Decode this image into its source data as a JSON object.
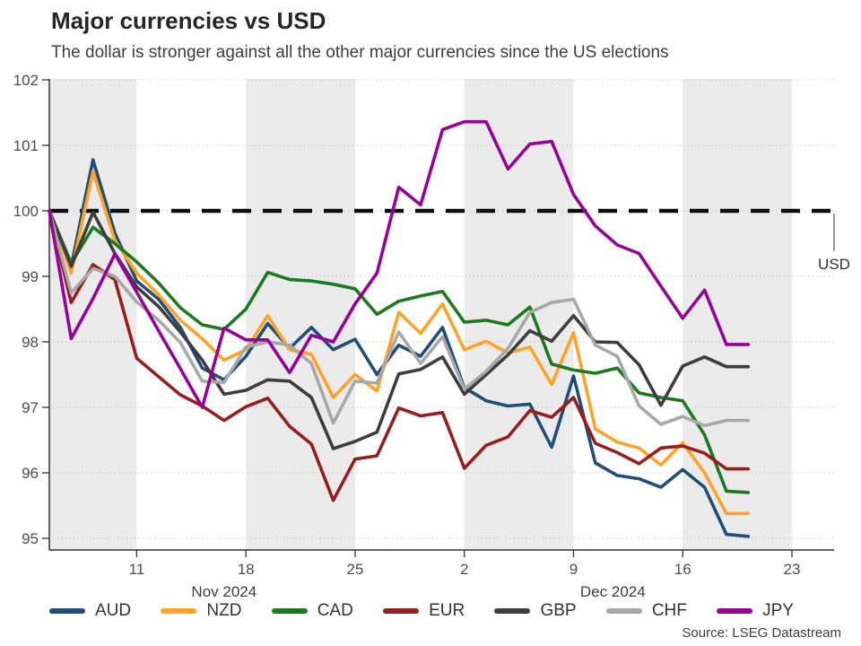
{
  "header": {
    "title": "Major currencies vs USD",
    "subtitle": "The dollar is stronger against all the other major currencies since the US elections"
  },
  "source": "Source: LSEG Datastream",
  "chart_data": {
    "type": "line",
    "title": "Major currencies vs USD",
    "xlabel": "",
    "ylabel": "",
    "ylim": [
      94.8,
      102
    ],
    "y_ticks": [
      95,
      96,
      97,
      98,
      99,
      100,
      101,
      102
    ],
    "grid": "dotted horizontal",
    "baseline": {
      "value": 100,
      "label": "USD"
    },
    "dates": [
      "Nov 5",
      "Nov 6",
      "Nov 7",
      "Nov 8",
      "Nov 11",
      "Nov 12",
      "Nov 13",
      "Nov 14",
      "Nov 15",
      "Nov 18",
      "Nov 19",
      "Nov 20",
      "Nov 21",
      "Nov 22",
      "Nov 25",
      "Nov 26",
      "Nov 27",
      "Nov 28",
      "Nov 29",
      "Dec 2",
      "Dec 3",
      "Dec 4",
      "Dec 5",
      "Dec 6",
      "Dec 9",
      "Dec 10",
      "Dec 11",
      "Dec 12",
      "Dec 13",
      "Dec 16",
      "Dec 17",
      "Dec 18",
      "Dec 19"
    ],
    "x_ticks": [
      {
        "label": "11",
        "day_index": 4
      },
      {
        "label": "18",
        "day_index": 9
      },
      {
        "label": "25",
        "day_index": 14
      },
      {
        "label": "2",
        "day_index": 19
      },
      {
        "label": "9",
        "day_index": 24
      },
      {
        "label": "16",
        "day_index": 29
      },
      {
        "label": "23",
        "day_index": 34
      }
    ],
    "month_labels": [
      {
        "label": "Nov 2024",
        "day_index": 8
      },
      {
        "label": "Dec 2024",
        "day_index": 25.8
      }
    ],
    "week_bands_day_index": [
      [
        0,
        4
      ],
      [
        9,
        14
      ],
      [
        19,
        24
      ],
      [
        29,
        34
      ]
    ],
    "band_color": "#ebebeb",
    "series": [
      {
        "name": "AUD",
        "color": "#1F4E79",
        "values": [
          100,
          99.15,
          100.78,
          99.66,
          98.93,
          98.65,
          98.22,
          97.6,
          97.42,
          97.78,
          98.28,
          97.9,
          98.22,
          97.88,
          98.04,
          97.5,
          97.95,
          97.78,
          98.22,
          97.3,
          97.1,
          97.02,
          97.05,
          96.39,
          97.48,
          96.15,
          95.96,
          95.91,
          95.78,
          96.05,
          95.78,
          95.06,
          95.03
        ]
      },
      {
        "name": "NZD",
        "color": "#FFA226",
        "values": [
          100,
          99.05,
          100.6,
          99.55,
          99.05,
          98.72,
          98.33,
          98.05,
          97.72,
          97.88,
          98.4,
          97.88,
          97.81,
          97.15,
          97.5,
          97.25,
          98.45,
          98.13,
          98.58,
          97.88,
          98.01,
          97.83,
          97.92,
          97.35,
          98.14,
          96.67,
          96.47,
          96.38,
          96.12,
          96.46,
          96.0,
          95.38,
          95.38
        ]
      },
      {
        "name": "CAD",
        "color": "#1B7A1B",
        "values": [
          100,
          99.2,
          99.75,
          99.5,
          99.22,
          98.9,
          98.52,
          98.26,
          98.19,
          98.5,
          99.06,
          98.95,
          98.93,
          98.88,
          98.81,
          98.42,
          98.62,
          98.7,
          98.77,
          98.3,
          98.33,
          98.26,
          98.53,
          97.66,
          97.57,
          97.52,
          97.6,
          97.22,
          97.15,
          97.1,
          96.58,
          95.72,
          95.7
        ]
      },
      {
        "name": "EUR",
        "color": "#9B1C1C",
        "values": [
          100,
          98.6,
          99.18,
          98.95,
          97.75,
          97.47,
          97.19,
          97.02,
          96.8,
          97.01,
          97.14,
          96.71,
          96.44,
          95.58,
          96.21,
          96.26,
          96.99,
          96.87,
          96.92,
          96.07,
          96.42,
          96.55,
          96.95,
          96.85,
          97.15,
          96.45,
          96.31,
          96.14,
          96.38,
          96.41,
          96.3,
          96.06,
          96.06
        ]
      },
      {
        "name": "GBP",
        "color": "#3D3D3D",
        "values": [
          100,
          99.15,
          99.98,
          99.35,
          98.84,
          98.54,
          98.15,
          97.72,
          97.2,
          97.26,
          97.42,
          97.4,
          97.15,
          96.37,
          96.48,
          96.62,
          97.51,
          97.58,
          97.77,
          97.2,
          97.5,
          97.8,
          98.17,
          98.01,
          98.4,
          98.0,
          97.99,
          97.65,
          97.03,
          97.63,
          97.77,
          97.62,
          97.62
        ]
      },
      {
        "name": "CHF",
        "color": "#A8A8A8",
        "values": [
          100,
          98.75,
          99.12,
          99.0,
          98.61,
          98.33,
          97.99,
          97.4,
          97.38,
          97.92,
          98.0,
          97.95,
          97.67,
          96.76,
          97.4,
          97.37,
          98.15,
          97.67,
          98.08,
          97.28,
          97.55,
          97.9,
          98.45,
          98.6,
          98.65,
          97.95,
          97.78,
          97.02,
          96.74,
          96.86,
          96.72,
          96.8,
          96.8
        ]
      },
      {
        "name": "JPY",
        "color": "#990099",
        "values": [
          100,
          98.05,
          98.66,
          99.34,
          98.76,
          98.17,
          97.59,
          97.0,
          98.21,
          98.03,
          98.03,
          97.53,
          98.1,
          98.0,
          98.58,
          99.05,
          100.36,
          100.09,
          101.24,
          101.36,
          101.36,
          100.64,
          101.02,
          101.06,
          100.25,
          99.77,
          99.48,
          99.35,
          98.85,
          98.36,
          98.79,
          97.96,
          97.96
        ]
      }
    ],
    "legend_position": "bottom"
  }
}
